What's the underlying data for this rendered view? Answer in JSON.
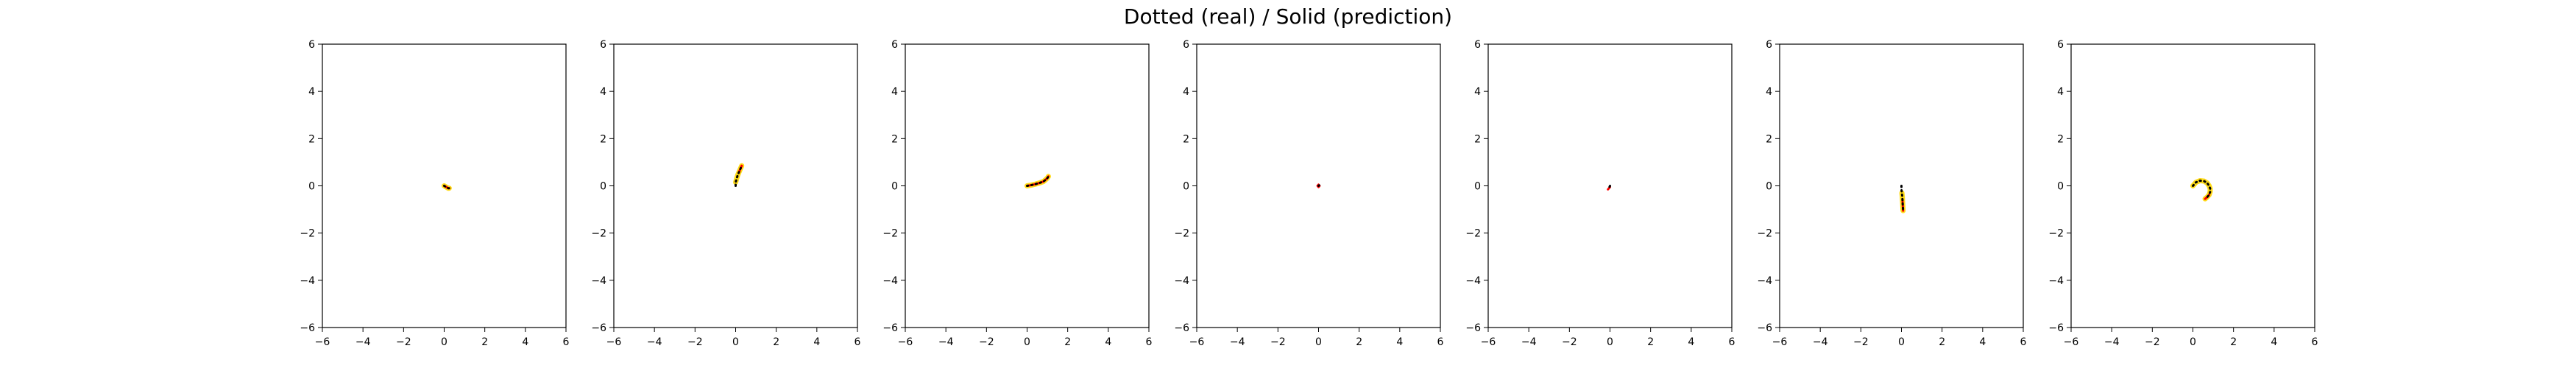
{
  "suptitle": "Dotted (real) / Solid (prediction)",
  "chart_data": [
    {
      "type": "line",
      "xlim": [
        -6,
        6
      ],
      "ylim": [
        -6,
        6
      ],
      "xticks": [
        -6,
        -4,
        -2,
        0,
        2,
        4,
        6
      ],
      "yticks": [
        -6,
        -4,
        -2,
        0,
        2,
        4,
        6
      ],
      "series": [
        {
          "role": "real",
          "style": "dotted",
          "color": "#000000",
          "x": [
            0.0,
            0.1,
            0.2,
            0.25
          ],
          "y": [
            0.0,
            -0.05,
            -0.1,
            -0.1
          ]
        },
        {
          "role": "prediction",
          "style": "solid",
          "color": "#ff0000",
          "x": [
            0.0,
            0.1,
            0.2,
            0.25
          ],
          "y": [
            0.0,
            -0.05,
            -0.1,
            -0.1
          ]
        },
        {
          "role": "prediction-band",
          "style": "solid",
          "color": "#ffd700",
          "x": [
            0.0,
            0.1,
            0.2,
            0.25
          ],
          "y": [
            0.0,
            -0.05,
            -0.1,
            -0.1
          ]
        }
      ]
    },
    {
      "type": "line",
      "xlim": [
        -6,
        6
      ],
      "ylim": [
        -6,
        6
      ],
      "xticks": [
        -6,
        -4,
        -2,
        0,
        2,
        4,
        6
      ],
      "yticks": [
        -6,
        -4,
        -2,
        0,
        2,
        4,
        6
      ],
      "series": [
        {
          "role": "real",
          "style": "dotted",
          "color": "#000000",
          "x": [
            0.0,
            0.0,
            0.05,
            0.1,
            0.15,
            0.2,
            0.25,
            0.3
          ],
          "y": [
            0.0,
            0.15,
            0.3,
            0.45,
            0.55,
            0.65,
            0.75,
            0.85
          ]
        },
        {
          "role": "prediction",
          "style": "solid",
          "color": "#ff0000",
          "x": [
            0.15,
            0.2,
            0.25,
            0.3
          ],
          "y": [
            0.55,
            0.65,
            0.75,
            0.85
          ]
        },
        {
          "role": "prediction-band",
          "style": "solid",
          "color": "#ffd700",
          "x": [
            0.0,
            0.05,
            0.1,
            0.15,
            0.2,
            0.25,
            0.3
          ],
          "y": [
            0.15,
            0.3,
            0.45,
            0.55,
            0.65,
            0.75,
            0.85
          ]
        }
      ]
    },
    {
      "type": "line",
      "xlim": [
        -6,
        6
      ],
      "ylim": [
        -6,
        6
      ],
      "xticks": [
        -6,
        -4,
        -2,
        0,
        2,
        4,
        6
      ],
      "yticks": [
        -6,
        -4,
        -2,
        0,
        2,
        4,
        6
      ],
      "series": [
        {
          "role": "real",
          "style": "dotted",
          "color": "#000000",
          "x": [
            0.0,
            0.2,
            0.4,
            0.6,
            0.8,
            0.9,
            1.0,
            1.05
          ],
          "y": [
            0.0,
            0.03,
            0.07,
            0.12,
            0.18,
            0.25,
            0.33,
            0.4
          ]
        },
        {
          "role": "prediction",
          "style": "solid",
          "color": "#ff0000",
          "x": [
            0.0,
            0.2,
            0.4,
            0.6,
            0.8,
            0.9,
            1.0,
            1.05
          ],
          "y": [
            0.0,
            0.03,
            0.07,
            0.12,
            0.18,
            0.25,
            0.33,
            0.4
          ]
        },
        {
          "role": "prediction-band",
          "style": "solid",
          "color": "#ffd700",
          "x": [
            0.0,
            0.2,
            0.4,
            0.6,
            0.8,
            0.9,
            1.0,
            1.05
          ],
          "y": [
            0.0,
            0.03,
            0.07,
            0.12,
            0.18,
            0.25,
            0.33,
            0.4
          ]
        }
      ]
    },
    {
      "type": "line",
      "xlim": [
        -6,
        6
      ],
      "ylim": [
        -6,
        6
      ],
      "xticks": [
        -6,
        -4,
        -2,
        0,
        2,
        4,
        6
      ],
      "yticks": [
        -6,
        -4,
        -2,
        0,
        2,
        4,
        6
      ],
      "series": [
        {
          "role": "real",
          "style": "dotted",
          "color": "#000000",
          "x": [
            0.0,
            0.03
          ],
          "y": [
            0.0,
            0.02
          ]
        },
        {
          "role": "prediction",
          "style": "solid",
          "color": "#ff0000",
          "x": [
            -0.05,
            0.0,
            0.05,
            0.0,
            -0.05
          ],
          "y": [
            0.0,
            0.05,
            0.0,
            -0.05,
            0.0
          ]
        }
      ]
    },
    {
      "type": "line",
      "xlim": [
        -6,
        6
      ],
      "ylim": [
        -6,
        6
      ],
      "xticks": [
        -6,
        -4,
        -2,
        0,
        2,
        4,
        6
      ],
      "yticks": [
        -6,
        -4,
        -2,
        0,
        2,
        4,
        6
      ],
      "series": [
        {
          "role": "real",
          "style": "dotted",
          "color": "#000000",
          "x": [
            0.0,
            -0.05
          ],
          "y": [
            0.0,
            -0.1
          ]
        },
        {
          "role": "prediction",
          "style": "solid",
          "color": "#ff0000",
          "x": [
            -0.05,
            0.0,
            -0.1,
            -0.05
          ],
          "y": [
            -0.1,
            -0.05,
            -0.15,
            -0.1
          ]
        }
      ]
    },
    {
      "type": "line",
      "xlim": [
        -6,
        6
      ],
      "ylim": [
        -6,
        6
      ],
      "xticks": [
        -6,
        -4,
        -2,
        0,
        2,
        4,
        6
      ],
      "yticks": [
        -6,
        -4,
        -2,
        0,
        2,
        4,
        6
      ],
      "series": [
        {
          "role": "real",
          "style": "dotted",
          "color": "#000000",
          "x": [
            0.0,
            0.0,
            0.02,
            0.04,
            0.05,
            0.06,
            0.07,
            0.08
          ],
          "y": [
            0.0,
            -0.15,
            -0.3,
            -0.45,
            -0.6,
            -0.75,
            -0.9,
            -1.05
          ]
        },
        {
          "role": "prediction",
          "style": "solid",
          "color": "#ff0000",
          "x": [
            0.05,
            0.06,
            0.07,
            0.08
          ],
          "y": [
            -0.6,
            -0.75,
            -0.9,
            -1.05
          ]
        },
        {
          "role": "prediction-band",
          "style": "solid",
          "color": "#ffd700",
          "x": [
            0.02,
            0.04,
            0.05,
            0.06,
            0.07,
            0.08
          ],
          "y": [
            -0.3,
            -0.45,
            -0.6,
            -0.75,
            -0.9,
            -1.05
          ]
        }
      ]
    },
    {
      "type": "line",
      "xlim": [
        -6,
        6
      ],
      "ylim": [
        -6,
        6
      ],
      "xticks": [
        -6,
        -4,
        -2,
        0,
        2,
        4,
        6
      ],
      "yticks": [
        -6,
        -4,
        -2,
        0,
        2,
        4,
        6
      ],
      "series": [
        {
          "role": "real",
          "style": "dotted",
          "color": "#000000",
          "x": [
            0.0,
            0.15,
            0.35,
            0.55,
            0.7,
            0.8,
            0.85,
            0.85,
            0.8,
            0.7,
            0.6
          ],
          "y": [
            0.0,
            0.15,
            0.22,
            0.2,
            0.12,
            0.0,
            -0.12,
            -0.25,
            -0.38,
            -0.48,
            -0.55
          ]
        },
        {
          "role": "prediction",
          "style": "solid",
          "color": "#ff0000",
          "x": [
            0.8,
            0.7,
            0.6
          ],
          "y": [
            -0.38,
            -0.48,
            -0.55
          ]
        },
        {
          "role": "prediction-band",
          "style": "solid",
          "color": "#ffd700",
          "x": [
            0.0,
            0.15,
            0.35,
            0.55,
            0.7,
            0.8,
            0.85,
            0.85,
            0.8,
            0.7,
            0.6
          ],
          "y": [
            0.0,
            0.15,
            0.22,
            0.2,
            0.12,
            0.0,
            -0.12,
            -0.25,
            -0.38,
            -0.48,
            -0.55
          ]
        }
      ]
    }
  ]
}
